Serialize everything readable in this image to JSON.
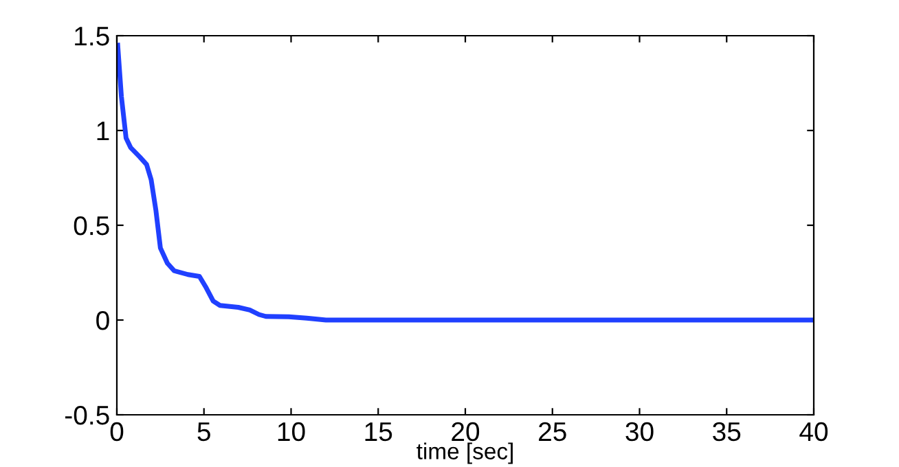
{
  "chart_data": {
    "type": "line",
    "xlabel": "time [sec]",
    "series": [
      {
        "color": "#2040ff",
        "x": [
          0.05,
          0.26,
          0.53,
          0.79,
          1.32,
          1.71,
          1.97,
          2.24,
          2.5,
          2.9,
          3.29,
          4.08,
          4.74,
          5.13,
          5.53,
          5.92,
          6.97,
          7.63,
          8.16,
          8.55,
          9.87,
          10.9,
          12,
          15,
          20,
          25,
          30,
          35,
          40
        ],
        "values": [
          1.45,
          1.18,
          0.96,
          0.91,
          0.86,
          0.82,
          0.74,
          0.58,
          0.38,
          0.3,
          0.26,
          0.24,
          0.23,
          0.17,
          0.1,
          0.077,
          0.067,
          0.053,
          0.029,
          0.019,
          0.017,
          0.01,
          0,
          0,
          0,
          0,
          0,
          0,
          0
        ]
      }
    ],
    "xlim": [
      0,
      40
    ],
    "ylim": [
      -0.5,
      1.5
    ],
    "xticks": [
      0,
      5,
      10,
      15,
      20,
      25,
      30,
      35,
      40
    ],
    "yticks": [
      -0.5,
      0,
      0.5,
      1,
      1.5
    ],
    "grid": false,
    "legend": false
  }
}
